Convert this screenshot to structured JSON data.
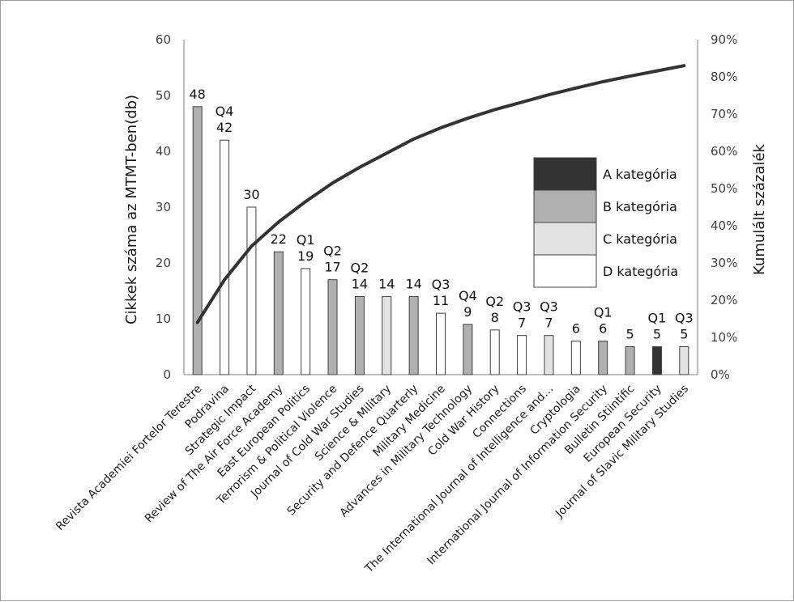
{
  "chart_data": {
    "type": "bar",
    "categories": [
      "Revista Academiei Fortelor Terestre",
      "Podravina",
      "Strategic Impact",
      "Review of The Air Force Academy",
      "East European Politics",
      "Terrorism & Political Violence",
      "Journal of Cold War Studies",
      "Science & Military",
      "Security and Defence Quarterly",
      "Military Medicine",
      "Advances in Military Technology",
      "Cold War History",
      "Connections",
      "The International Journal of Intelligence and…",
      "Cryptologia",
      "International Journal of Information Security",
      "Bulletin Stiintific",
      "European Security",
      "Journal of Slavic Military Studies"
    ],
    "values": [
      48,
      42,
      30,
      22,
      19,
      17,
      14,
      14,
      14,
      11,
      9,
      8,
      7,
      7,
      6,
      6,
      5,
      5,
      5
    ],
    "value_labels": [
      "48",
      "42",
      "30",
      "22",
      "19",
      "17",
      "14",
      "14",
      "14",
      "11",
      "9",
      "8",
      "7",
      "7",
      "6",
      "6",
      "5",
      "5",
      "5"
    ],
    "quartiles": [
      "",
      "Q4",
      "",
      "",
      "Q1",
      "Q2",
      "Q2",
      "",
      "",
      "Q3",
      "Q4",
      "Q2",
      "Q3",
      "Q3",
      "",
      "Q1",
      "",
      "Q1",
      "Q3"
    ],
    "bar_category": [
      "B",
      "D",
      "D",
      "B",
      "D",
      "B",
      "B",
      "C",
      "B",
      "D",
      "B",
      "D",
      "D",
      "C",
      "D",
      "B",
      "B",
      "A",
      "C"
    ],
    "cumulative_percent": [
      14,
      25.5,
      34.5,
      41,
      46.5,
      51.5,
      55.7,
      59.5,
      63.3,
      66.3,
      68.9,
      71.2,
      73.2,
      75.2,
      77,
      78.7,
      80.2,
      81.6,
      83
    ],
    "ylabel": "Cikkek száma az MTMT-ben(db)",
    "y2label": "Kumulált százalék",
    "ylim": [
      0,
      60
    ],
    "yticks": [
      "0",
      "10",
      "20",
      "30",
      "40",
      "50",
      "60"
    ],
    "y2lim": [
      0,
      90
    ],
    "y2ticks": [
      "0%",
      "10%",
      "20%",
      "30%",
      "40%",
      "50%",
      "60%",
      "70%",
      "80%",
      "90%"
    ],
    "legend": {
      "position": "right",
      "items": [
        {
          "key": "A",
          "label": "A kategória",
          "color": "#333333"
        },
        {
          "key": "B",
          "label": "B kategória",
          "color": "#b0b0b0"
        },
        {
          "key": "C",
          "label": "C kategória",
          "color": "#e3e3e3"
        },
        {
          "key": "D",
          "label": "D kategória",
          "color": "#ffffff"
        }
      ]
    },
    "line_color": "#333333",
    "grid": false
  }
}
